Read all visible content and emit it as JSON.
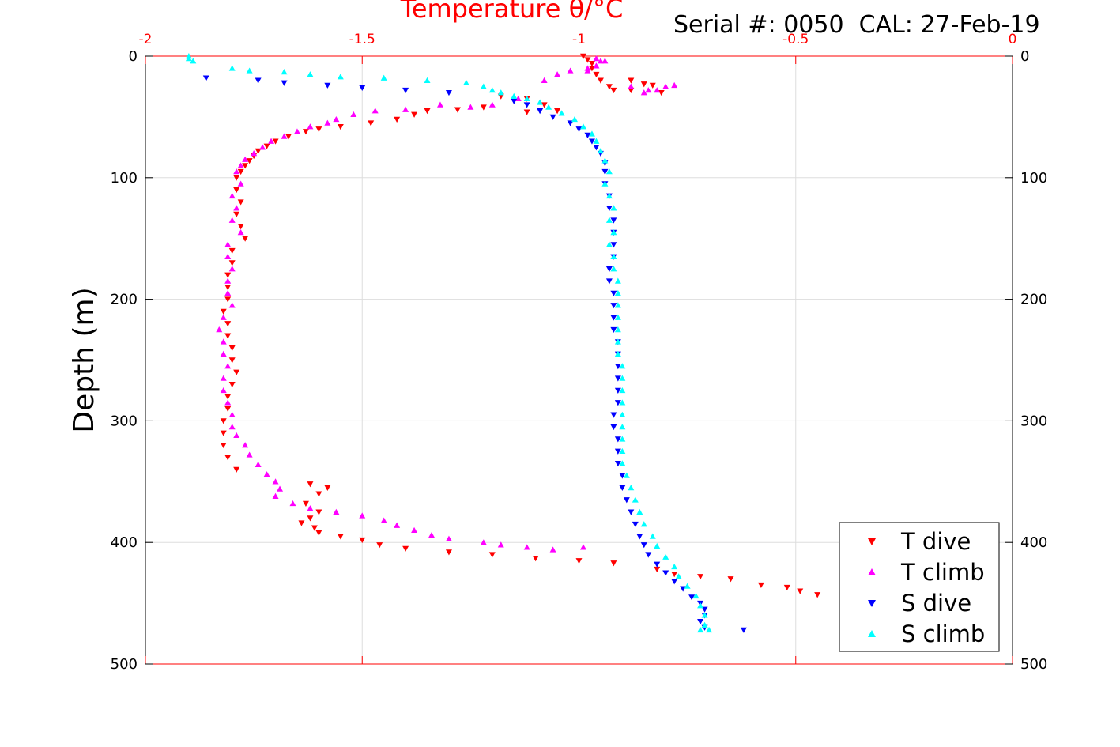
{
  "serial_label": "Serial #: 0050  CAL: 27-Feb-19",
  "chart_data": {
    "type": "scatter",
    "title": "",
    "xlabel": "Temperature θ/°C",
    "ylabel": "Depth (m)",
    "xlim": [
      -2,
      0
    ],
    "ylim": [
      500,
      0
    ],
    "x_ticks": [
      "-2",
      "-1.5",
      "-1",
      "-0.5",
      "0"
    ],
    "y_ticks": [
      "0",
      "100",
      "200",
      "300",
      "400",
      "500"
    ],
    "grid": true,
    "legend_position": "bottom-right",
    "colors": {
      "top_axis": "#ff0000",
      "grid": "#dddddd"
    },
    "series": [
      {
        "name": "T dive",
        "marker": "triangle-down",
        "color": "#ff0000",
        "points": [
          [
            -0.99,
            0
          ],
          [
            -0.98,
            3
          ],
          [
            -0.97,
            6
          ],
          [
            -0.97,
            10
          ],
          [
            -0.96,
            15
          ],
          [
            -0.95,
            20
          ],
          [
            -0.93,
            25
          ],
          [
            -0.92,
            28
          ],
          [
            -0.88,
            20
          ],
          [
            -0.85,
            23
          ],
          [
            -0.83,
            24
          ],
          [
            -0.81,
            30
          ],
          [
            -0.88,
            28
          ],
          [
            -1.18,
            33
          ],
          [
            -1.12,
            35
          ],
          [
            -1.08,
            40
          ],
          [
            -1.05,
            45
          ],
          [
            -1.12,
            46
          ],
          [
            -1.22,
            42
          ],
          [
            -1.28,
            44
          ],
          [
            -1.35,
            45
          ],
          [
            -1.38,
            48
          ],
          [
            -1.42,
            52
          ],
          [
            -1.48,
            55
          ],
          [
            -1.55,
            58
          ],
          [
            -1.6,
            60
          ],
          [
            -1.63,
            62
          ],
          [
            -1.67,
            66
          ],
          [
            -1.7,
            70
          ],
          [
            -1.72,
            74
          ],
          [
            -1.74,
            78
          ],
          [
            -1.75,
            82
          ],
          [
            -1.76,
            86
          ],
          [
            -1.77,
            90
          ],
          [
            -1.78,
            95
          ],
          [
            -1.79,
            100
          ],
          [
            -1.79,
            110
          ],
          [
            -1.78,
            120
          ],
          [
            -1.79,
            130
          ],
          [
            -1.78,
            140
          ],
          [
            -1.77,
            150
          ],
          [
            -1.8,
            160
          ],
          [
            -1.8,
            170
          ],
          [
            -1.81,
            180
          ],
          [
            -1.81,
            190
          ],
          [
            -1.81,
            200
          ],
          [
            -1.82,
            210
          ],
          [
            -1.81,
            220
          ],
          [
            -1.81,
            230
          ],
          [
            -1.8,
            240
          ],
          [
            -1.8,
            250
          ],
          [
            -1.79,
            260
          ],
          [
            -1.8,
            270
          ],
          [
            -1.81,
            280
          ],
          [
            -1.81,
            290
          ],
          [
            -1.82,
            300
          ],
          [
            -1.82,
            310
          ],
          [
            -1.82,
            320
          ],
          [
            -1.81,
            330
          ],
          [
            -1.79,
            340
          ],
          [
            -1.62,
            352
          ],
          [
            -1.58,
            355
          ],
          [
            -1.6,
            360
          ],
          [
            -1.63,
            368
          ],
          [
            -1.6,
            375
          ],
          [
            -1.62,
            380
          ],
          [
            -1.64,
            384
          ],
          [
            -1.61,
            388
          ],
          [
            -1.6,
            392
          ],
          [
            -1.55,
            395
          ],
          [
            -1.5,
            398
          ],
          [
            -1.46,
            402
          ],
          [
            -1.4,
            405
          ],
          [
            -1.3,
            408
          ],
          [
            -1.2,
            410
          ],
          [
            -1.1,
            413
          ],
          [
            -1.0,
            415
          ],
          [
            -0.92,
            417
          ],
          [
            -0.82,
            422
          ],
          [
            -0.78,
            426
          ],
          [
            -0.72,
            428
          ],
          [
            -0.65,
            430
          ],
          [
            -0.58,
            435
          ],
          [
            -0.52,
            437
          ],
          [
            -0.49,
            440
          ],
          [
            -0.45,
            443
          ]
        ]
      },
      {
        "name": "T climb",
        "marker": "triangle-up",
        "color": "#ff00ff",
        "points": [
          [
            -0.96,
            2
          ],
          [
            -0.95,
            4
          ],
          [
            -0.96,
            8
          ],
          [
            -0.98,
            10
          ],
          [
            -1.02,
            12
          ],
          [
            -1.05,
            15
          ],
          [
            -1.08,
            20
          ],
          [
            -0.85,
            30
          ],
          [
            -0.82,
            28
          ],
          [
            -0.8,
            25
          ],
          [
            -0.78,
            24
          ],
          [
            -1.14,
            35
          ],
          [
            -1.2,
            40
          ],
          [
            -1.25,
            42
          ],
          [
            -1.32,
            40
          ],
          [
            -1.4,
            44
          ],
          [
            -1.47,
            45
          ],
          [
            -1.52,
            48
          ],
          [
            -1.56,
            52
          ],
          [
            -1.58,
            55
          ],
          [
            -1.62,
            58
          ],
          [
            -1.65,
            62
          ],
          [
            -1.68,
            66
          ],
          [
            -1.71,
            70
          ],
          [
            -1.73,
            75
          ],
          [
            -1.75,
            80
          ],
          [
            -1.77,
            85
          ],
          [
            -1.78,
            90
          ],
          [
            -1.79,
            95
          ],
          [
            -1.78,
            105
          ],
          [
            -1.8,
            115
          ],
          [
            -1.79,
            125
          ],
          [
            -1.8,
            135
          ],
          [
            -1.78,
            145
          ],
          [
            -1.81,
            155
          ],
          [
            -1.81,
            165
          ],
          [
            -1.8,
            175
          ],
          [
            -1.81,
            185
          ],
          [
            -1.81,
            195
          ],
          [
            -1.8,
            205
          ],
          [
            -1.82,
            215
          ],
          [
            -1.83,
            225
          ],
          [
            -1.82,
            235
          ],
          [
            -1.82,
            245
          ],
          [
            -1.81,
            255
          ],
          [
            -1.82,
            265
          ],
          [
            -1.82,
            275
          ],
          [
            -1.81,
            285
          ],
          [
            -1.8,
            295
          ],
          [
            -1.8,
            305
          ],
          [
            -1.79,
            312
          ],
          [
            -1.77,
            320
          ],
          [
            -1.76,
            328
          ],
          [
            -1.74,
            336
          ],
          [
            -1.72,
            344
          ],
          [
            -1.7,
            350
          ],
          [
            -1.69,
            356
          ],
          [
            -1.7,
            362
          ],
          [
            -1.66,
            368
          ],
          [
            -1.62,
            372
          ],
          [
            -1.56,
            375
          ],
          [
            -1.5,
            378
          ],
          [
            -1.45,
            382
          ],
          [
            -1.42,
            386
          ],
          [
            -1.38,
            390
          ],
          [
            -1.34,
            394
          ],
          [
            -1.3,
            397
          ],
          [
            -1.22,
            400
          ],
          [
            -1.18,
            402
          ],
          [
            -1.12,
            404
          ],
          [
            -1.06,
            406
          ],
          [
            -0.99,
            404
          ],
          [
            -0.98,
            12
          ],
          [
            -0.94,
            4
          ],
          [
            -0.88,
            25
          ],
          [
            -0.84,
            28
          ]
        ]
      },
      {
        "name": "S dive",
        "marker": "triangle-down",
        "color": "#0000ff",
        "points": [
          [
            -1.86,
            18
          ],
          [
            -1.74,
            20
          ],
          [
            -1.68,
            22
          ],
          [
            -1.58,
            24
          ],
          [
            -1.5,
            26
          ],
          [
            -1.4,
            28
          ],
          [
            -1.3,
            30
          ],
          [
            -1.15,
            37
          ],
          [
            -1.12,
            40
          ],
          [
            -1.09,
            45
          ],
          [
            -1.06,
            50
          ],
          [
            -1.02,
            55
          ],
          [
            -1.0,
            60
          ],
          [
            -0.98,
            65
          ],
          [
            -0.97,
            70
          ],
          [
            -0.96,
            75
          ],
          [
            -0.95,
            80
          ],
          [
            -0.94,
            88
          ],
          [
            -0.94,
            95
          ],
          [
            -0.94,
            105
          ],
          [
            -0.93,
            115
          ],
          [
            -0.93,
            125
          ],
          [
            -0.92,
            135
          ],
          [
            -0.92,
            145
          ],
          [
            -0.92,
            155
          ],
          [
            -0.92,
            165
          ],
          [
            -0.93,
            175
          ],
          [
            -0.93,
            185
          ],
          [
            -0.92,
            195
          ],
          [
            -0.92,
            205
          ],
          [
            -0.92,
            215
          ],
          [
            -0.92,
            225
          ],
          [
            -0.91,
            235
          ],
          [
            -0.91,
            245
          ],
          [
            -0.91,
            255
          ],
          [
            -0.91,
            265
          ],
          [
            -0.91,
            275
          ],
          [
            -0.91,
            285
          ],
          [
            -0.92,
            295
          ],
          [
            -0.92,
            305
          ],
          [
            -0.91,
            315
          ],
          [
            -0.91,
            325
          ],
          [
            -0.91,
            335
          ],
          [
            -0.9,
            345
          ],
          [
            -0.9,
            355
          ],
          [
            -0.89,
            365
          ],
          [
            -0.88,
            375
          ],
          [
            -0.87,
            385
          ],
          [
            -0.86,
            395
          ],
          [
            -0.85,
            402
          ],
          [
            -0.84,
            410
          ],
          [
            -0.82,
            418
          ],
          [
            -0.8,
            425
          ],
          [
            -0.78,
            432
          ],
          [
            -0.76,
            438
          ],
          [
            -0.74,
            445
          ],
          [
            -0.72,
            450
          ],
          [
            -0.71,
            455
          ],
          [
            -0.71,
            460
          ],
          [
            -0.72,
            465
          ],
          [
            -0.71,
            470
          ],
          [
            -0.62,
            472
          ]
        ]
      },
      {
        "name": "S climb",
        "marker": "triangle-up",
        "color": "#00ffff",
        "points": [
          [
            -1.9,
            0
          ],
          [
            -1.9,
            2
          ],
          [
            -1.89,
            4
          ],
          [
            -1.8,
            10
          ],
          [
            -1.76,
            12
          ],
          [
            -1.68,
            13
          ],
          [
            -1.62,
            15
          ],
          [
            -1.55,
            17
          ],
          [
            -1.45,
            18
          ],
          [
            -1.35,
            20
          ],
          [
            -1.26,
            22
          ],
          [
            -1.22,
            25
          ],
          [
            -1.2,
            28
          ],
          [
            -1.18,
            30
          ],
          [
            -1.15,
            33
          ],
          [
            -1.12,
            35
          ],
          [
            -1.09,
            38
          ],
          [
            -1.07,
            42
          ],
          [
            -1.04,
            47
          ],
          [
            -1.01,
            52
          ],
          [
            -0.99,
            58
          ],
          [
            -0.97,
            64
          ],
          [
            -0.96,
            70
          ],
          [
            -0.95,
            78
          ],
          [
            -0.94,
            86
          ],
          [
            -0.93,
            95
          ],
          [
            -0.94,
            105
          ],
          [
            -0.93,
            115
          ],
          [
            -0.92,
            125
          ],
          [
            -0.93,
            135
          ],
          [
            -0.92,
            145
          ],
          [
            -0.93,
            155
          ],
          [
            -0.92,
            165
          ],
          [
            -0.92,
            175
          ],
          [
            -0.91,
            185
          ],
          [
            -0.91,
            195
          ],
          [
            -0.91,
            205
          ],
          [
            -0.91,
            215
          ],
          [
            -0.91,
            225
          ],
          [
            -0.91,
            235
          ],
          [
            -0.91,
            245
          ],
          [
            -0.9,
            255
          ],
          [
            -0.9,
            265
          ],
          [
            -0.9,
            275
          ],
          [
            -0.9,
            285
          ],
          [
            -0.9,
            295
          ],
          [
            -0.9,
            305
          ],
          [
            -0.9,
            315
          ],
          [
            -0.9,
            325
          ],
          [
            -0.9,
            335
          ],
          [
            -0.89,
            345
          ],
          [
            -0.88,
            355
          ],
          [
            -0.87,
            365
          ],
          [
            -0.86,
            375
          ],
          [
            -0.85,
            385
          ],
          [
            -0.83,
            395
          ],
          [
            -0.82,
            403
          ],
          [
            -0.8,
            412
          ],
          [
            -0.78,
            420
          ],
          [
            -0.77,
            428
          ],
          [
            -0.75,
            436
          ],
          [
            -0.73,
            444
          ],
          [
            -0.72,
            452
          ],
          [
            -0.71,
            460
          ],
          [
            -0.71,
            468
          ],
          [
            -0.7,
            472
          ],
          [
            -0.72,
            472
          ]
        ]
      }
    ]
  }
}
